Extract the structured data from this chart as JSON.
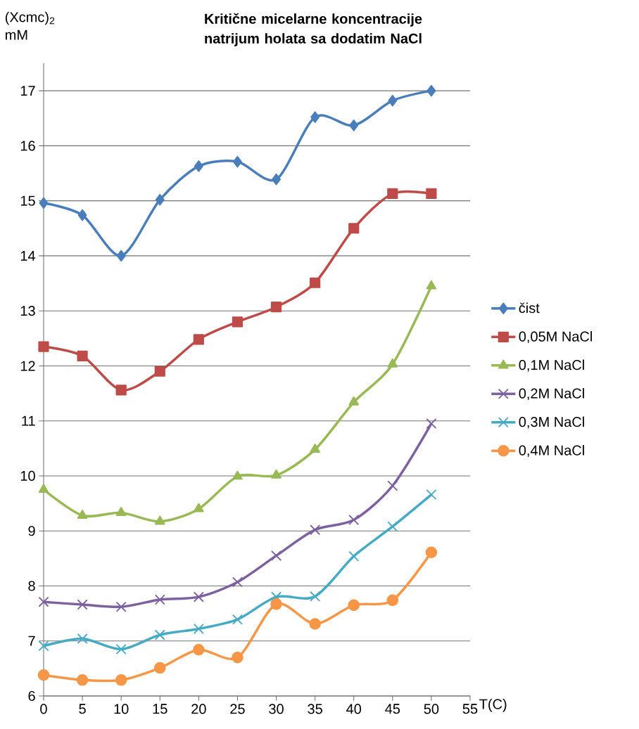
{
  "chart_data": {
    "type": "line",
    "title": "Kritične micelarne koncentracije natrijum holata sa dodatim NaCl",
    "xlabel": "T(C)",
    "ylabel": "(Xcmc)$_{2}$ mM",
    "x": [
      0,
      5,
      10,
      15,
      20,
      25,
      30,
      35,
      40,
      45,
      50
    ],
    "xlim": [
      0,
      55
    ],
    "xticks": [
      0,
      5,
      10,
      15,
      20,
      25,
      30,
      35,
      40,
      45,
      50,
      55
    ],
    "ylim": [
      6,
      17.5
    ],
    "yticks": [
      6,
      7,
      8,
      9,
      10,
      11,
      12,
      13,
      14,
      15,
      16,
      17
    ],
    "grid": "y",
    "legend": "right",
    "series": [
      {
        "name": "čist",
        "color": "#4a7ebb",
        "marker": "diamond",
        "values": [
          14.96,
          14.74,
          14.0,
          15.02,
          15.63,
          15.71,
          15.39,
          16.52,
          16.37,
          16.82,
          17.0
        ]
      },
      {
        "name": "0,05M NaCl",
        "color": "#be4b48",
        "marker": "square",
        "values": [
          12.35,
          12.18,
          11.56,
          11.9,
          12.48,
          12.8,
          13.07,
          13.51,
          14.5,
          15.13,
          15.13
        ]
      },
      {
        "name": "0,1M NaCl",
        "color": "#98b954",
        "marker": "triangle",
        "values": [
          9.75,
          9.28,
          9.33,
          9.17,
          9.4,
          9.99,
          10.01,
          10.48,
          11.34,
          12.03,
          13.45
        ]
      },
      {
        "name": "0,2M NaCl",
        "color": "#7d60a0",
        "marker": "cross",
        "values": [
          7.71,
          7.66,
          7.62,
          7.75,
          7.8,
          8.07,
          8.55,
          9.02,
          9.2,
          9.82,
          10.95
        ]
      },
      {
        "name": "0,3M NaCl",
        "color": "#46aac5",
        "marker": "cross",
        "values": [
          6.91,
          7.04,
          6.85,
          7.11,
          7.22,
          7.39,
          7.8,
          7.81,
          8.54,
          9.08,
          9.66
        ]
      },
      {
        "name": "0,4M NaCl",
        "color": "#f79646",
        "marker": "circle",
        "values": [
          6.38,
          6.29,
          6.29,
          6.51,
          6.84,
          6.7,
          7.67,
          7.31,
          7.65,
          7.74,
          8.61
        ]
      }
    ]
  }
}
